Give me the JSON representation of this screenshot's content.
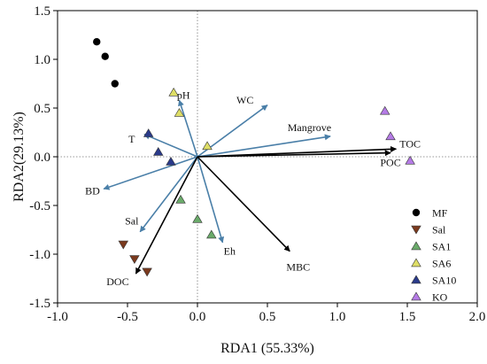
{
  "chart_data": {
    "type": "scatter",
    "title": "",
    "xlabel": "RDA1 (55.33%)",
    "ylabel": "RDA2(29.13%)",
    "xlim": [
      -1.0,
      2.0
    ],
    "ylim": [
      -1.5,
      1.5
    ],
    "xticks": [
      -1.0,
      -0.5,
      0.0,
      0.5,
      1.0,
      1.5,
      2.0
    ],
    "yticks": [
      -1.5,
      -1.0,
      -0.5,
      0.0,
      0.5,
      1.0,
      1.5
    ],
    "xtick_labels": [
      "-1.0",
      "-0.5",
      "0.0",
      "0.5",
      "1.0",
      "1.5",
      "2.0"
    ],
    "ytick_labels": [
      "-1.5",
      "-1.0",
      "-0.5",
      "0.0",
      "0.5",
      "1.0",
      "1.5"
    ],
    "grid": false,
    "zero_lines": "dotted",
    "legend_position": "right",
    "series": [
      {
        "name": "MF",
        "marker": "circle",
        "color": "#000000",
        "points": [
          [
            -0.72,
            1.18
          ],
          [
            -0.66,
            1.03
          ],
          [
            -0.59,
            0.75
          ]
        ]
      },
      {
        "name": "Sal",
        "marker": "triangle-down",
        "color": "#7b3a1e",
        "points": [
          [
            -0.53,
            -0.9
          ],
          [
            -0.45,
            -1.05
          ],
          [
            -0.36,
            -1.18
          ]
        ]
      },
      {
        "name": "SA1",
        "marker": "triangle-up",
        "color": "#6aaa6a",
        "points": [
          [
            -0.12,
            -0.44
          ],
          [
            0.0,
            -0.64
          ],
          [
            0.1,
            -0.8
          ]
        ]
      },
      {
        "name": "SA6",
        "marker": "triangle-up",
        "color": "#dede66",
        "points": [
          [
            -0.17,
            0.66
          ],
          [
            -0.13,
            0.45
          ],
          [
            0.07,
            0.11
          ]
        ]
      },
      {
        "name": "SA10",
        "marker": "triangle-up",
        "color": "#2a3a8a",
        "points": [
          [
            -0.35,
            0.24
          ],
          [
            -0.28,
            0.05
          ],
          [
            -0.19,
            -0.05
          ]
        ]
      },
      {
        "name": "KO",
        "marker": "triangle-up",
        "color": "#b57be6",
        "points": [
          [
            1.34,
            0.47
          ],
          [
            1.38,
            0.21
          ],
          [
            1.52,
            -0.04
          ]
        ]
      }
    ],
    "vectors": [
      {
        "label": "pH",
        "group": "blue",
        "end": [
          -0.13,
          0.58
        ],
        "label_pos": [
          -0.1,
          0.63
        ]
      },
      {
        "label": "WC",
        "group": "blue",
        "end": [
          0.5,
          0.53
        ],
        "label_pos": [
          0.34,
          0.58
        ]
      },
      {
        "label": "Mangrove",
        "group": "blue",
        "end": [
          0.95,
          0.21
        ],
        "label_pos": [
          0.8,
          0.3
        ]
      },
      {
        "label": "T",
        "group": "blue",
        "end": [
          -0.38,
          0.23
        ],
        "label_pos": [
          -0.47,
          0.18
        ]
      },
      {
        "label": "BD",
        "group": "blue",
        "end": [
          -0.67,
          -0.33
        ],
        "label_pos": [
          -0.75,
          -0.35
        ]
      },
      {
        "label": "Sal",
        "group": "blue",
        "end": [
          -0.41,
          -0.77
        ],
        "label_pos": [
          -0.47,
          -0.66
        ]
      },
      {
        "label": "Eh",
        "group": "blue",
        "end": [
          0.18,
          -0.88
        ],
        "label_pos": [
          0.23,
          -0.97
        ]
      },
      {
        "label": "TOC",
        "group": "black",
        "end": [
          1.42,
          0.08
        ],
        "label_pos": [
          1.52,
          0.13
        ]
      },
      {
        "label": "POC",
        "group": "black",
        "end": [
          1.38,
          0.04
        ],
        "label_pos": [
          1.38,
          -0.06
        ]
      },
      {
        "label": "MBC",
        "group": "black",
        "end": [
          0.66,
          -0.97
        ],
        "label_pos": [
          0.72,
          -1.13
        ]
      },
      {
        "label": "DOC",
        "group": "black",
        "end": [
          -0.44,
          -1.2
        ],
        "label_pos": [
          -0.57,
          -1.28
        ]
      }
    ],
    "colors": {
      "blue_vector": "#4a7fa8",
      "black_vector": "#000000",
      "axis": "#000000",
      "zero_line": "#777777"
    }
  }
}
